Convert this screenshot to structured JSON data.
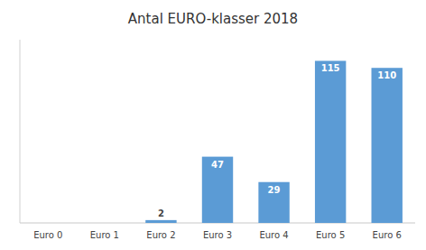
{
  "chart_data": {
    "type": "bar",
    "title": "Antal EURO-klasser 2018",
    "categories": [
      "Euro 0",
      "Euro 1",
      "Euro 2",
      "Euro 3",
      "Euro 4",
      "Euro 5",
      "Euro 6"
    ],
    "values": [
      0,
      0,
      2,
      47,
      29,
      115,
      110
    ],
    "value_labels": [
      null,
      null,
      "2",
      "47",
      "29",
      "115",
      "110"
    ],
    "color": "#5B9BD5",
    "ylim": [
      0,
      130
    ],
    "grid": false,
    "data_labels": true,
    "tick_labels": "x"
  }
}
